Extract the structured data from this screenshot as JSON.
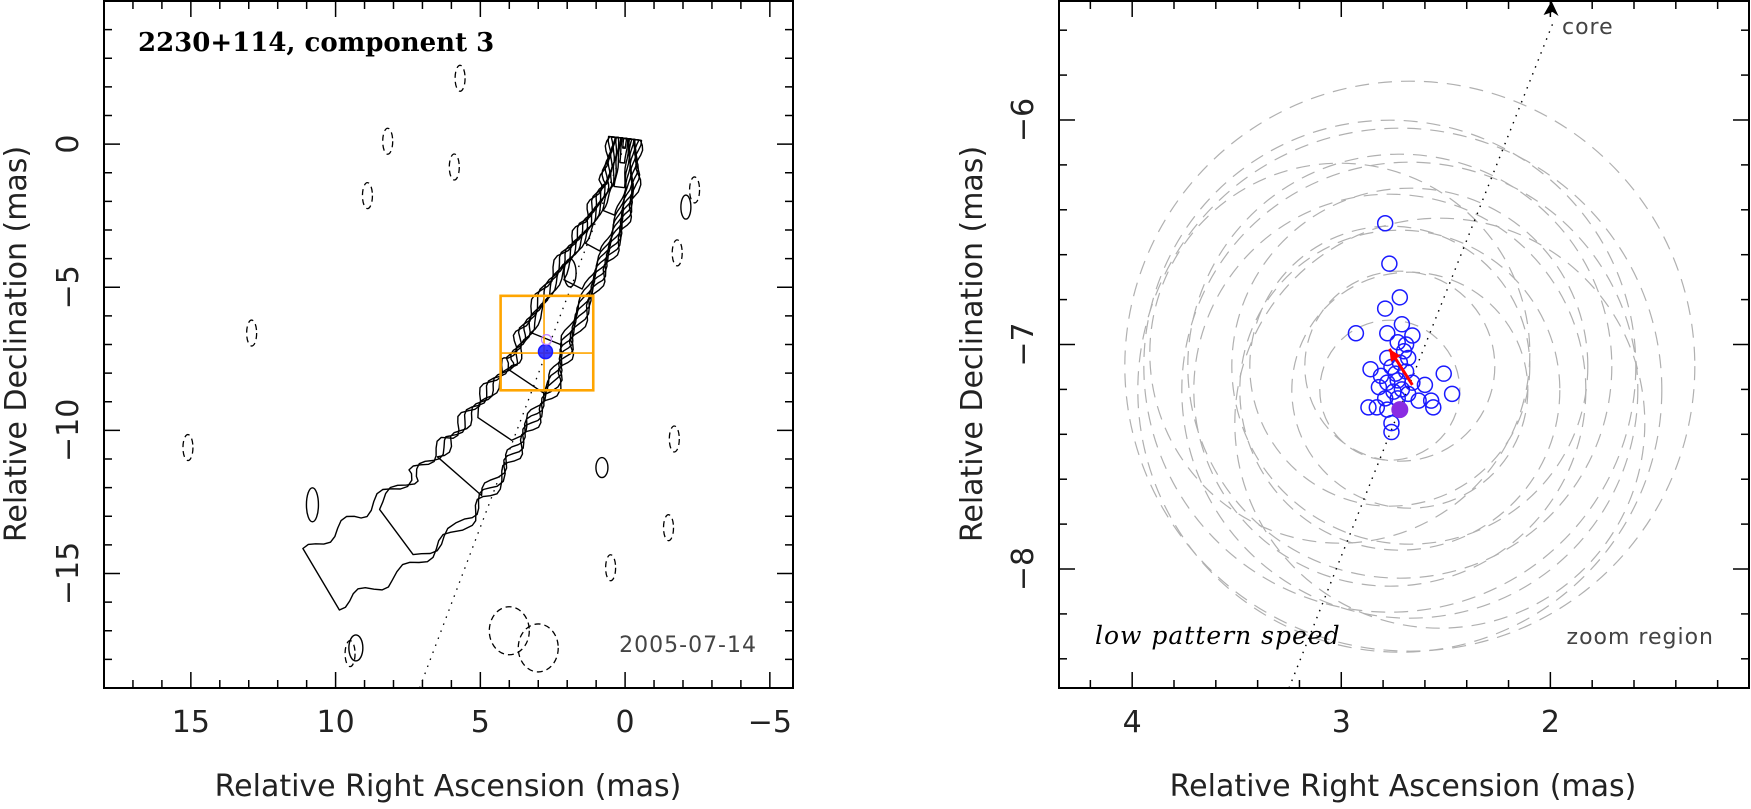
{
  "chart_data": [
    {
      "type": "contour",
      "title": "2230+114, component 3",
      "xlabel": "Relative Right Ascension (mas)",
      "ylabel": "Relative Declination (mas)",
      "xlim": [
        18,
        -5.8
      ],
      "ylim": [
        -19,
        5
      ],
      "xticks": [
        15,
        10,
        5,
        0,
        -5
      ],
      "yticks": [
        0,
        -5,
        -10,
        -15
      ],
      "annotation_date": "2005-07-14",
      "zoom_box": {
        "x": [
          4.3,
          1.1
        ],
        "y": [
          -5.3,
          -8.6
        ],
        "cross_x": 2.8,
        "cross_y": -7.3
      },
      "component_marker": {
        "x": 2.75,
        "y": -7.25,
        "color": "#1a1aff"
      },
      "jet_axis": {
        "from": [
          7.1,
          -19
        ],
        "to": [
          0,
          0
        ]
      },
      "jet_ridge": [
        [
          0,
          0.2
        ],
        [
          0.2,
          -1.5
        ],
        [
          0.8,
          -3
        ],
        [
          1.6,
          -4.5
        ],
        [
          2.6,
          -6.5
        ],
        [
          3.2,
          -8
        ],
        [
          4.2,
          -9.5
        ],
        [
          5.2,
          -11
        ],
        [
          6.5,
          -12.5
        ],
        [
          8.5,
          -14
        ],
        [
          10.5,
          -15.2
        ]
      ],
      "jet_width": [
        1.1,
        1.3,
        1.5,
        1.7,
        1.9,
        2.0,
        2.2,
        2.4,
        2.6,
        2.6,
        2.2
      ],
      "positive_levels": 12,
      "negative_contours": [
        [
          5.7,
          2.3
        ],
        [
          8.2,
          0.1
        ],
        [
          5.9,
          -0.8
        ],
        [
          8.9,
          -1.8
        ],
        [
          -2.4,
          -1.6
        ],
        [
          -1.8,
          -3.8
        ],
        [
          12.9,
          -6.6
        ],
        [
          15.1,
          -10.6
        ],
        [
          -1.7,
          -10.3
        ],
        [
          -1.5,
          -13.4
        ],
        [
          0.5,
          -14.8
        ],
        [
          9.5,
          -17.8
        ],
        [
          4.0,
          -17.0
        ],
        [
          3.0,
          -17.6
        ]
      ]
    },
    {
      "type": "scatter",
      "xlabel": "Relative Right Ascension (mas)",
      "ylabel": "Relative Declination (mas)",
      "xlim": [
        4.35,
        1.05
      ],
      "ylim": [
        -8.53,
        -5.47
      ],
      "xticks": [
        4,
        3,
        2
      ],
      "yticks": [
        -6,
        -7,
        -8
      ],
      "label_left": "low pattern speed",
      "label_right": "zoom region",
      "core_label": "core",
      "axis_line": {
        "from": [
          3.25,
          -8.53
        ],
        "to": [
          1.98,
          -5.47
        ]
      },
      "points": [
        {
          "x": 2.79,
          "y": -6.46
        },
        {
          "x": 2.77,
          "y": -6.64
        },
        {
          "x": 2.72,
          "y": -6.79
        },
        {
          "x": 2.79,
          "y": -6.84
        },
        {
          "x": 2.71,
          "y": -6.91
        },
        {
          "x": 2.93,
          "y": -6.95
        },
        {
          "x": 2.78,
          "y": -6.95
        },
        {
          "x": 2.66,
          "y": -6.96
        },
        {
          "x": 2.73,
          "y": -6.99
        },
        {
          "x": 2.69,
          "y": -7.0
        },
        {
          "x": 2.7,
          "y": -7.03
        },
        {
          "x": 2.78,
          "y": -7.06
        },
        {
          "x": 2.68,
          "y": -7.06
        },
        {
          "x": 2.72,
          "y": -7.08
        },
        {
          "x": 2.76,
          "y": -7.1
        },
        {
          "x": 2.86,
          "y": -7.11
        },
        {
          "x": 2.69,
          "y": -7.12
        },
        {
          "x": 2.74,
          "y": -7.13
        },
        {
          "x": 2.81,
          "y": -7.14
        },
        {
          "x": 2.51,
          "y": -7.13
        },
        {
          "x": 2.73,
          "y": -7.16
        },
        {
          "x": 2.78,
          "y": -7.17
        },
        {
          "x": 2.66,
          "y": -7.17
        },
        {
          "x": 2.6,
          "y": -7.18
        },
        {
          "x": 2.82,
          "y": -7.19
        },
        {
          "x": 2.71,
          "y": -7.2
        },
        {
          "x": 2.75,
          "y": -7.21
        },
        {
          "x": 2.68,
          "y": -7.22
        },
        {
          "x": 2.47,
          "y": -7.22
        },
        {
          "x": 2.79,
          "y": -7.24
        },
        {
          "x": 2.73,
          "y": -7.24
        },
        {
          "x": 2.57,
          "y": -7.25
        },
        {
          "x": 2.63,
          "y": -7.25
        },
        {
          "x": 2.83,
          "y": -7.28
        },
        {
          "x": 2.87,
          "y": -7.28
        },
        {
          "x": 2.78,
          "y": -7.29
        },
        {
          "x": 2.56,
          "y": -7.28
        },
        {
          "x": 2.76,
          "y": -7.35
        },
        {
          "x": 2.76,
          "y": -7.39
        }
      ],
      "filled_point": {
        "x": 2.72,
        "y": -7.29
      },
      "velocity_arrow": {
        "from": [
          2.66,
          -7.18
        ],
        "to": [
          2.77,
          -7.02
        ],
        "color": "#ff0000"
      },
      "error_circle_center": {
        "x": 2.72,
        "y": -7.15
      }
    }
  ],
  "colors": {
    "points": "#1a1aff",
    "filled": "#8a2be2",
    "arrow": "#ff0000",
    "box": "#ffa500",
    "dashed": "#b0b0b0"
  }
}
